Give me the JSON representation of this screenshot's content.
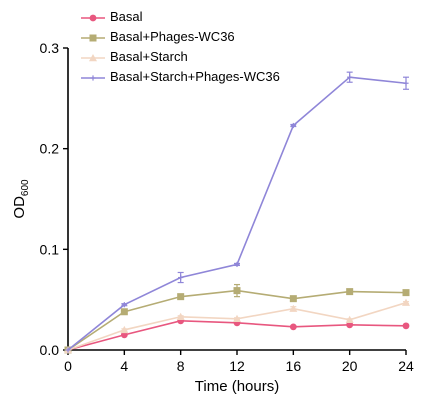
{
  "chart_data": {
    "type": "line",
    "x": [
      0,
      4,
      8,
      12,
      16,
      20,
      24
    ],
    "xlabel": "Time (hours)",
    "ylabel": "OD",
    "ylabel_sub": "600",
    "xlim": [
      0,
      24
    ],
    "ylim": [
      0,
      0.3
    ],
    "xticks": [
      0,
      4,
      8,
      12,
      16,
      20,
      24
    ],
    "xtick_labels": [
      "0",
      "4",
      "8",
      "12",
      "16",
      "20",
      "24"
    ],
    "yticks": [
      0,
      0.1,
      0.2,
      0.3
    ],
    "ytick_labels": [
      "0.0",
      "0.1",
      "0.2",
      "0.3"
    ],
    "grid": false,
    "legend_position": "top-left",
    "series": [
      {
        "name": "Basal",
        "color": "#e8577f",
        "marker": "circle",
        "values": [
          0.0,
          0.015,
          0.029,
          0.027,
          0.023,
          0.025,
          0.024
        ],
        "errors": [
          0,
          0.001,
          0.001,
          0.001,
          0.001,
          0.001,
          0.001
        ]
      },
      {
        "name": "Basal+Phages-WC36",
        "color": "#b5ac74",
        "marker": "square",
        "values": [
          0.0,
          0.038,
          0.053,
          0.059,
          0.051,
          0.058,
          0.057
        ],
        "errors": [
          0,
          0.001,
          0.001,
          0.006,
          0.002,
          0.001,
          0.001
        ]
      },
      {
        "name": "Basal+Starch",
        "color": "#f2d6c2",
        "marker": "triangle",
        "values": [
          0.0,
          0.02,
          0.033,
          0.031,
          0.041,
          0.03,
          0.047
        ],
        "errors": [
          0,
          0.001,
          0.001,
          0.001,
          0.002,
          0.001,
          0.001
        ]
      },
      {
        "name": "Basal+Starch+Phages-WC36",
        "color": "#8f86d8",
        "marker": "plus",
        "values": [
          0.0,
          0.045,
          0.072,
          0.085,
          0.223,
          0.271,
          0.265
        ],
        "errors": [
          0,
          0.001,
          0.005,
          0.001,
          0.001,
          0.005,
          0.006
        ]
      }
    ]
  }
}
